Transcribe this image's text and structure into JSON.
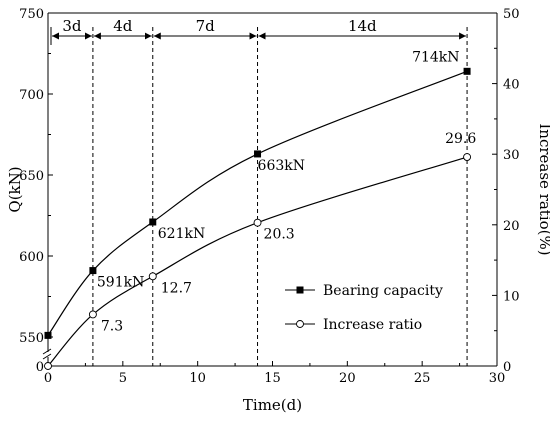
{
  "chart_data": {
    "type": "line",
    "xlabel": "Time(d)",
    "ylabel_left": "Q(kN)",
    "ylabel_right": "Increase ratio(%)",
    "xlim": [
      0,
      30
    ],
    "ylim_left": [
      550,
      750
    ],
    "ylim_right": [
      0,
      50
    ],
    "left_axis_break": true,
    "x_ticks": [
      0,
      5,
      10,
      15,
      20,
      25,
      30
    ],
    "y_left_ticks": [
      550,
      600,
      650,
      700,
      750
    ],
    "y_left_origin_label": "0",
    "y_right_ticks": [
      0,
      10,
      20,
      30,
      40,
      50
    ],
    "grid": false,
    "legend_position": "lower-right",
    "series": [
      {
        "name": "Bearing capacity",
        "axis": "left",
        "marker": "filled-square",
        "x": [
          0,
          3,
          7,
          14,
          28
        ],
        "y": [
          551,
          591,
          621,
          663,
          714
        ],
        "point_labels": [
          "",
          "591kN",
          "621kN",
          "663kN",
          "714kN"
        ]
      },
      {
        "name": "Increase ratio",
        "axis": "right",
        "marker": "open-circle",
        "x": [
          0,
          3,
          7,
          14,
          28
        ],
        "y": [
          0,
          7.3,
          12.7,
          20.3,
          29.6
        ],
        "point_labels": [
          "",
          "7.3",
          "12.7",
          "20.3",
          "29.6"
        ]
      }
    ],
    "interval_markers": {
      "boundaries": [
        0,
        3,
        7,
        14,
        28
      ],
      "labels": [
        "3d",
        "4d",
        "7d",
        "14d"
      ]
    }
  }
}
